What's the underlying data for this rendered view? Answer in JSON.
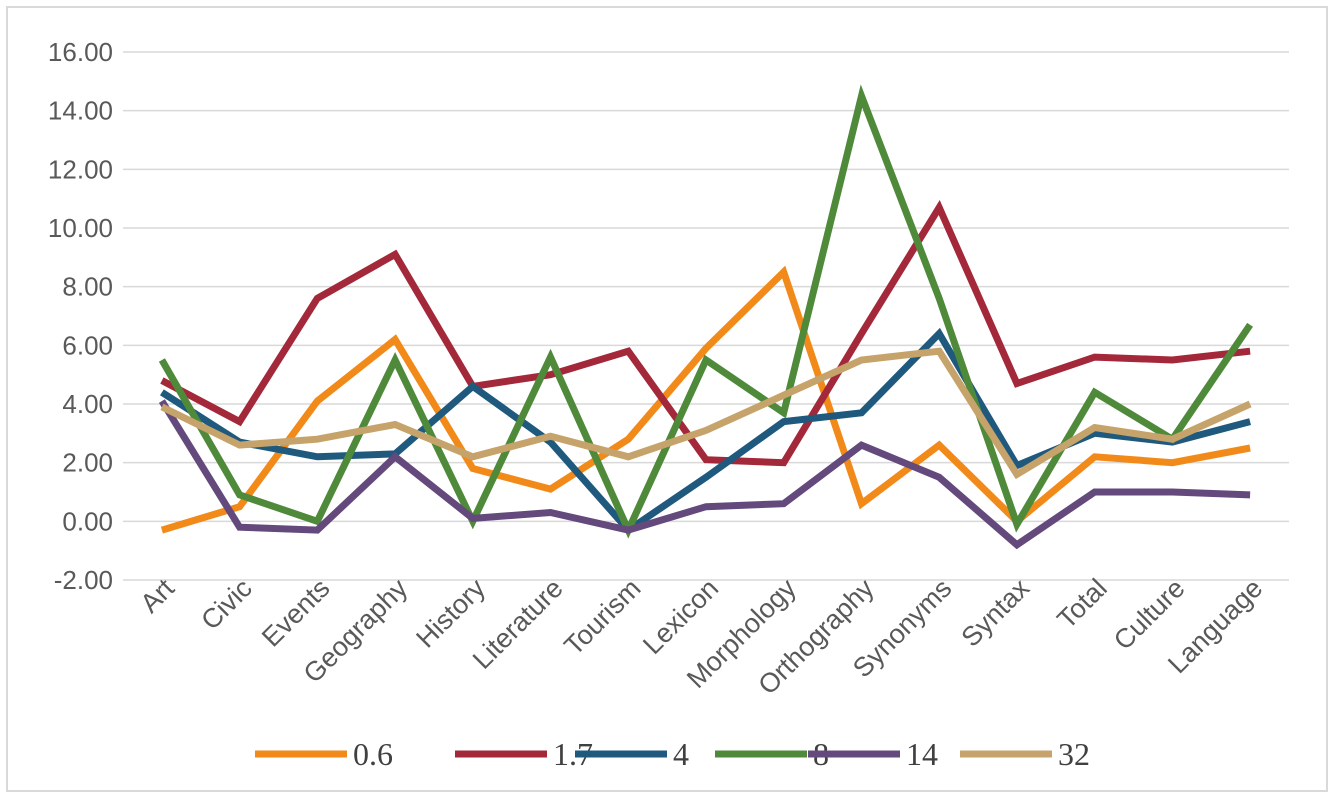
{
  "chart_data": {
    "type": "line",
    "title": "",
    "xlabel": "",
    "ylabel": "",
    "ylim": [
      -2,
      16
    ],
    "y_ticks": [
      16,
      14,
      12,
      10,
      8,
      6,
      4,
      2,
      0,
      -2
    ],
    "y_tick_labels": [
      "16.00",
      "14.00",
      "12.00",
      "10.00",
      "8.00",
      "6.00",
      "4.00",
      "2.00",
      "0.00",
      "-2.00"
    ],
    "grid": true,
    "legend_position": "bottom",
    "categories": [
      "Art",
      "Civic",
      "Events",
      "Geography",
      "History",
      "Literature",
      "Tourism",
      "Lexicon",
      "Morphology",
      "Orthography",
      "Synonyms",
      "Syntax",
      "Total",
      "Culture",
      "Language"
    ],
    "series": [
      {
        "name": "0.6",
        "color": "#f28a1a",
        "values": [
          -0.3,
          0.5,
          4.1,
          6.2,
          1.8,
          1.1,
          2.8,
          5.9,
          8.5,
          0.6,
          2.6,
          0.0,
          2.2,
          2.0,
          2.5
        ]
      },
      {
        "name": "1.7",
        "color": "#a3283a",
        "values": [
          4.8,
          3.4,
          7.6,
          9.1,
          4.6,
          5.0,
          5.8,
          2.1,
          2.0,
          6.4,
          10.7,
          4.7,
          5.6,
          5.5,
          5.8
        ]
      },
      {
        "name": "4",
        "color": "#1f5a7e",
        "values": [
          4.4,
          2.7,
          2.2,
          2.3,
          4.6,
          2.7,
          -0.3,
          1.5,
          3.4,
          3.7,
          6.4,
          1.9,
          3.0,
          2.7,
          3.4
        ]
      },
      {
        "name": "8",
        "color": "#4f8a3a",
        "values": [
          5.5,
          0.9,
          0.0,
          5.5,
          0.0,
          5.6,
          -0.3,
          5.5,
          3.7,
          14.5,
          7.6,
          -0.1,
          4.4,
          2.8,
          6.7
        ]
      },
      {
        "name": "14",
        "color": "#644a7c",
        "values": [
          4.1,
          -0.2,
          -0.3,
          2.2,
          0.1,
          0.3,
          -0.3,
          0.5,
          0.6,
          2.6,
          1.5,
          -0.8,
          1.0,
          1.0,
          0.9
        ]
      },
      {
        "name": "32",
        "color": "#c6a36a",
        "values": [
          3.9,
          2.6,
          2.8,
          3.3,
          2.2,
          2.9,
          2.2,
          3.1,
          4.3,
          5.5,
          5.8,
          1.6,
          3.2,
          2.8,
          4.0
        ]
      }
    ]
  }
}
